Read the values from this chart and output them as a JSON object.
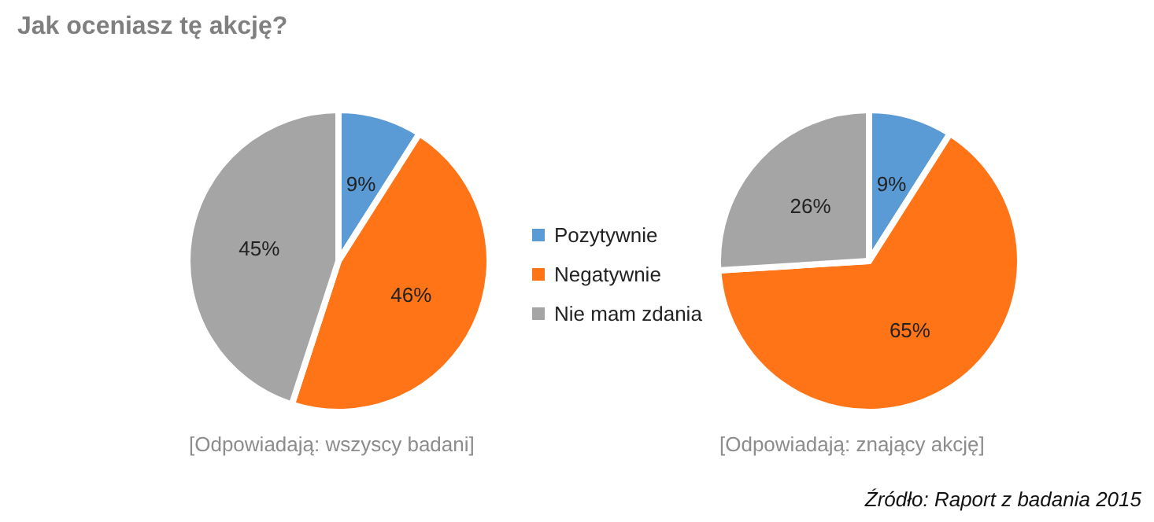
{
  "chart_data": [
    {
      "type": "pie",
      "title": "Jak oceniasz tę akcję?",
      "categories": [
        "Pozytywnie",
        "Negatywnie",
        "Nie mam zdania"
      ],
      "values": [
        9,
        46,
        45
      ],
      "value_labels": [
        "9%",
        "46%",
        "45%"
      ],
      "colors": [
        "#5b9bd5",
        "#ff7417",
        "#a5a5a5"
      ],
      "legend": "right",
      "annotations": [
        "[Odpowiadają: wszyscy badani]"
      ]
    },
    {
      "type": "pie",
      "categories": [
        null,
        null,
        null
      ],
      "values": [
        9,
        65,
        26
      ],
      "value_labels": [
        "9%",
        "65%",
        "26%"
      ],
      "colors": [
        "#5b9bd5",
        "#ff7417",
        "#a5a5a5"
      ],
      "legend": false,
      "annotations": [
        "[Odpowiadają: znający akcję]",
        "Źródło: Raport z badania 2015"
      ]
    }
  ]
}
